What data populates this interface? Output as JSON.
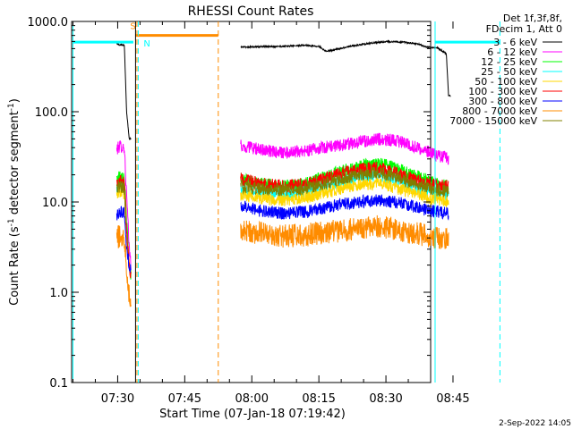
{
  "chart_data": {
    "type": "line",
    "title": "RHESSI Count Rates",
    "xlabel": "Start Time (07-Jan-18 07:19:42)",
    "ylabel_parts": [
      "Count Rate (s",
      "-1",
      " detector segment",
      "-1",
      ")"
    ],
    "yscale": "log",
    "ylim": [
      0.1,
      1000.0
    ],
    "xlim_min": [
      19.7,
      100.0
    ],
    "y_ticks": [
      {
        "v": 0.1,
        "label": "0.1"
      },
      {
        "v": 1,
        "label": "1.0"
      },
      {
        "v": 10,
        "label": "10.0"
      },
      {
        "v": 100,
        "label": "100.0"
      },
      {
        "v": 1000,
        "label": "1000.0"
      }
    ],
    "x_ticks": [
      {
        "v": 30,
        "label": "07:30"
      },
      {
        "v": 45,
        "label": "07:45"
      },
      {
        "v": 60,
        "label": "08:00"
      },
      {
        "v": 75,
        "label": "08:15"
      },
      {
        "v": 90,
        "label": "08:30"
      },
      {
        "v": 105,
        "label": "08:45"
      }
    ],
    "legend_header": [
      "Det 1f,3f,8f,",
      "FDecim 1, Att 0"
    ],
    "series": [
      {
        "name": "3 - 6 keV",
        "color": "#000000",
        "segments": [
          {
            "x": [
              29.8,
              30.5,
              31.5,
              32.0,
              32.6,
              33.0
            ],
            "y": [
              560,
              550,
              545,
              100,
              50,
              50
            ]
          },
          {
            "x": [
              57.5,
              62,
              67,
              72,
              75,
              76.5,
              78,
              82,
              86,
              90,
              94,
              97.5,
              99,
              101.5,
              103.5,
              104,
              104.5
            ],
            "y": [
              520,
              525,
              530,
              545,
              530,
              470,
              480,
              530,
              570,
              600,
              590,
              560,
              520,
              510,
              440,
              150,
              150
            ]
          }
        ]
      },
      {
        "name": "6 - 12 keV",
        "color": "#ff00ff",
        "segments": [
          {
            "x": [
              29.8,
              30.5,
              31.5,
              32.0,
              32.6,
              33.0
            ],
            "y": [
              38,
              42,
              40,
              12,
              3,
              2
            ]
          },
          {
            "x": [
              57.5,
              62,
              67,
              72,
              76,
              80,
              84,
              88,
              92,
              96,
              100,
              104
            ],
            "y": [
              42,
              38,
              35,
              37,
              40,
              43,
              46,
              50,
              48,
              42,
              35,
              30
            ]
          }
        ]
      },
      {
        "name": "12 - 25 keV",
        "color": "#00ff00",
        "segments": [
          {
            "x": [
              29.8,
              30.5,
              31.5,
              32.0,
              32.6,
              33.0
            ],
            "y": [
              18,
              20,
              19,
              6,
              2,
              1.5
            ]
          },
          {
            "x": [
              57.5,
              62,
              67,
              72,
              76,
              80,
              84,
              88,
              92,
              96,
              100,
              104
            ],
            "y": [
              18,
              16,
              15,
              16,
              19,
              22,
              25,
              27,
              24,
              20,
              17,
              15
            ]
          }
        ]
      },
      {
        "name": "25 - 50 keV",
        "color": "#00ffff",
        "segments": [
          {
            "x": [
              29.8,
              30.5,
              31.5,
              32.0,
              32.6,
              33.0
            ],
            "y": [
              14,
              16,
              15,
              5,
              2,
              1.5
            ]
          },
          {
            "x": [
              57.5,
              62,
              67,
              72,
              76,
              80,
              84,
              88,
              92,
              96,
              100,
              104
            ],
            "y": [
              14,
              13,
              12.5,
              13,
              15,
              17,
              19,
              20,
              18,
              15,
              13,
              12
            ]
          }
        ]
      },
      {
        "name": "50 - 100 keV",
        "color": "#ffd700",
        "segments": [
          {
            "x": [
              29.8,
              30.5,
              31.5,
              32.0,
              32.6,
              33.0
            ],
            "y": [
              12,
              13,
              12.5,
              4,
              2,
              1.5
            ]
          },
          {
            "x": [
              57.5,
              62,
              67,
              72,
              76,
              80,
              84,
              88,
              92,
              96,
              100,
              104
            ],
            "y": [
              12,
              11,
              10.5,
              11,
              12.5,
              14,
              15.5,
              16,
              14.5,
              12.5,
              11,
              10
            ]
          }
        ]
      },
      {
        "name": "100 - 300 keV",
        "color": "#ff0000",
        "segments": [
          {
            "x": [
              29.8,
              30.5,
              31.5,
              32.0,
              32.6,
              33.0
            ],
            "y": [
              16,
              18,
              17,
              5,
              2,
              1.5
            ]
          },
          {
            "x": [
              57.5,
              62,
              67,
              72,
              76,
              80,
              84,
              88,
              92,
              96,
              100,
              104
            ],
            "y": [
              18,
              16,
              15,
              16,
              18,
              21,
              23,
              24,
              21,
              18,
              16,
              15
            ]
          }
        ]
      },
      {
        "name": "300 - 800 keV",
        "color": "#0000ff",
        "segments": [
          {
            "x": [
              29.8,
              30.5,
              31.5,
              32.0,
              32.6,
              33.0
            ],
            "y": [
              7,
              8,
              7.5,
              3,
              2,
              1.7
            ]
          },
          {
            "x": [
              57.5,
              62,
              67,
              72,
              76,
              80,
              84,
              88,
              92,
              96,
              100,
              104
            ],
            "y": [
              9,
              8,
              7.5,
              7.8,
              8.5,
              9.5,
              10,
              10.5,
              10,
              9,
              8,
              7.5
            ]
          }
        ]
      },
      {
        "name": "800 - 7000 keV",
        "color": "#ff8c00",
        "segments": [
          {
            "x": [
              29.8,
              30.5,
              31.5,
              32.0,
              32.6,
              33.0
            ],
            "y": [
              4,
              4.2,
              4,
              2,
              0.9,
              0.7
            ]
          },
          {
            "x": [
              57.5,
              62,
              67,
              72,
              76,
              80,
              84,
              88,
              92,
              96,
              100,
              104
            ],
            "y": [
              5,
              4.5,
              4.2,
              4.3,
              4.6,
              4.8,
              5.2,
              5.4,
              5.0,
              4.5,
              4.2,
              3.8
            ]
          }
        ]
      },
      {
        "name": "7000 - 15000 keV",
        "color": "#808000",
        "segments": [
          {
            "x": [
              29.8,
              30.5,
              31.5,
              32.0
            ],
            "y": [
              14,
              15,
              14.5,
              5
            ]
          },
          {
            "x": [
              57.5,
              62,
              67,
              72,
              76,
              80,
              84,
              88,
              92,
              96,
              100,
              104
            ],
            "y": [
              15,
              14,
              13.5,
              14,
              16,
              18,
              20,
              21,
              19,
              16,
              14,
              13
            ]
          }
        ]
      }
    ],
    "markers": [
      {
        "kind": "cyan-solid",
        "x": 20.0,
        "color": "#00ffff",
        "style": "solid"
      },
      {
        "kind": "black-solid",
        "x": 34.0,
        "color": "#000000",
        "style": "solid"
      },
      {
        "kind": "orange-dashed",
        "x": 34.3,
        "color": "#ff8c00",
        "style": "dashed"
      },
      {
        "kind": "cyan-dashed",
        "x": 34.6,
        "color": "#00ffff",
        "style": "dashed"
      },
      {
        "kind": "orange-dashed",
        "x": 52.5,
        "color": "#ff8c00",
        "style": "dashed"
      },
      {
        "kind": "cyan-solid",
        "x": 101.0,
        "color": "#00ffff",
        "style": "solid"
      },
      {
        "kind": "cyan-dashed",
        "x": 115.5,
        "color": "#00ffff",
        "style": "dashed"
      }
    ],
    "cyan_bars": [
      {
        "x1": 20.0,
        "x2": 33.5,
        "y": 590
      },
      {
        "x1": 101.0,
        "x2": 115.5,
        "y": 590
      }
    ],
    "saa_bar": {
      "x1": 34.0,
      "x2": 52.5,
      "y": 700,
      "color": "#ff8c00"
    },
    "labels": [
      {
        "text": "S",
        "x": 32.8,
        "y": 820,
        "color": "#ff8c00"
      },
      {
        "text": "N",
        "x": 35.8,
        "y": 530,
        "color": "#00ffff"
      }
    ],
    "timestamp": "2-Sep-2022 14:05",
    "grid": false,
    "legend_position": "right"
  }
}
